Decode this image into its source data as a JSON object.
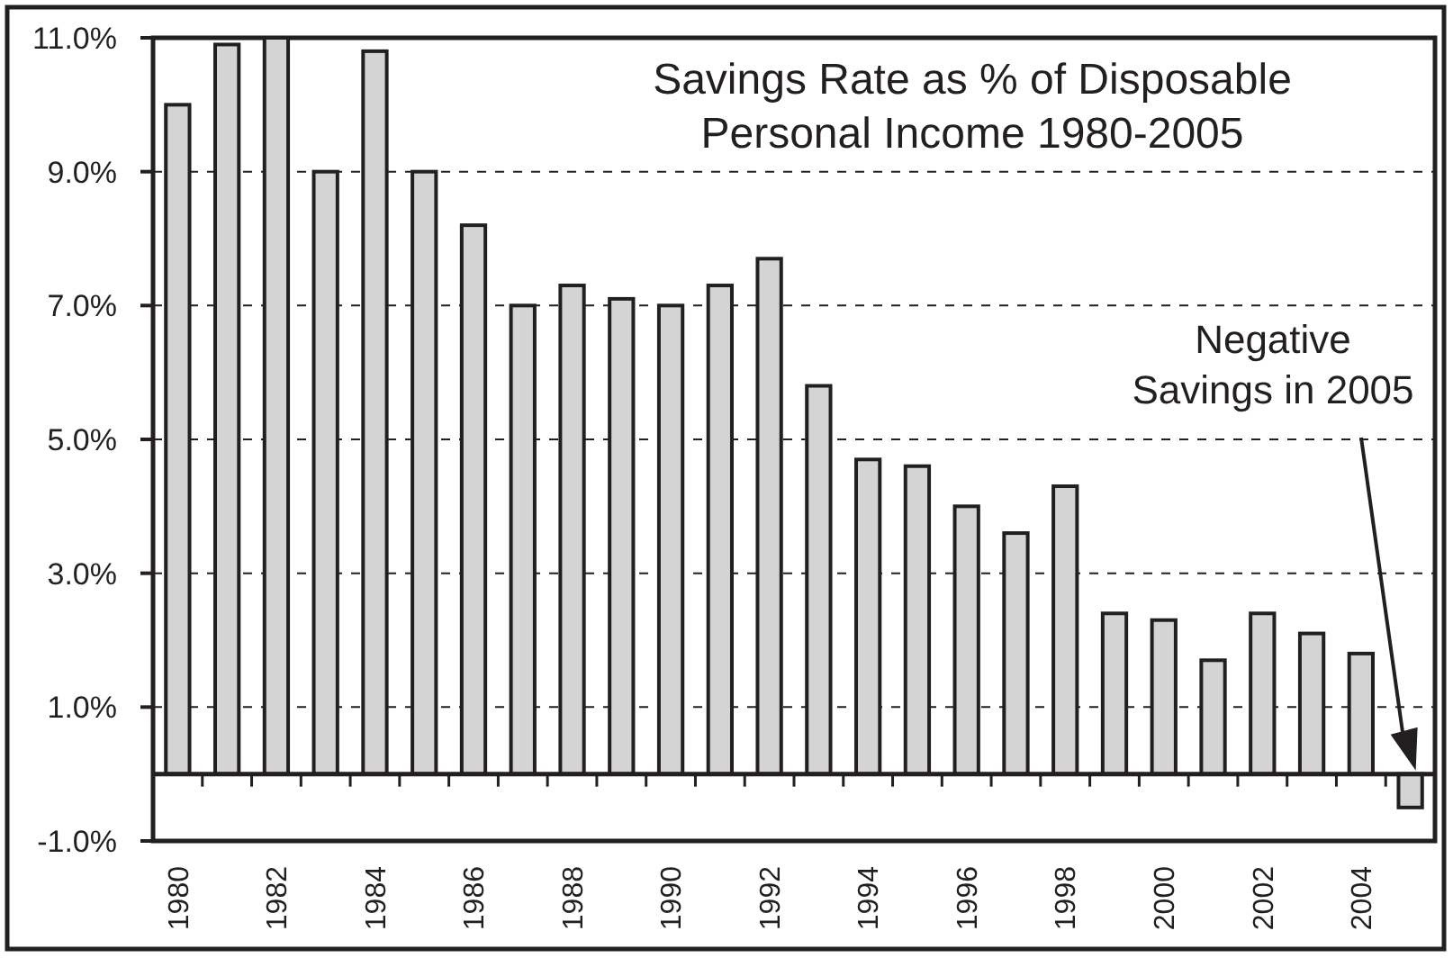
{
  "chart_data": {
    "type": "bar",
    "title": "Savings Rate as % of Disposable Personal Income 1980-2005",
    "categories": [
      "1980",
      null,
      "1982",
      null,
      "1984",
      null,
      "1986",
      null,
      "1988",
      null,
      "1990",
      null,
      "1992",
      null,
      "1994",
      null,
      "1996",
      null,
      "1998",
      null,
      "2000",
      null,
      "2002",
      null,
      "2004",
      null
    ],
    "values": [
      10.0,
      10.9,
      11.0,
      9.0,
      10.8,
      9.0,
      8.2,
      7.0,
      7.3,
      7.1,
      7.0,
      7.3,
      7.7,
      5.8,
      4.7,
      4.6,
      4.0,
      3.6,
      4.3,
      2.4,
      2.3,
      1.7,
      2.4,
      2.1,
      1.8,
      -0.5
    ],
    "color": "#d4d4d4",
    "ylim": [
      -1,
      11
    ],
    "yticks": [
      {
        "value": -1,
        "label": "-1.0%"
      },
      {
        "value": 1,
        "label": "1.0%"
      },
      {
        "value": 3,
        "label": "3.0%"
      },
      {
        "value": 5,
        "label": "5.0%"
      },
      {
        "value": 7,
        "label": "7.0%"
      },
      {
        "value": 9,
        "label": "9.0%"
      },
      {
        "value": 11,
        "label": "11.0%"
      }
    ],
    "grid": "y",
    "annotations": [
      "Negative Savings in 2005"
    ]
  }
}
